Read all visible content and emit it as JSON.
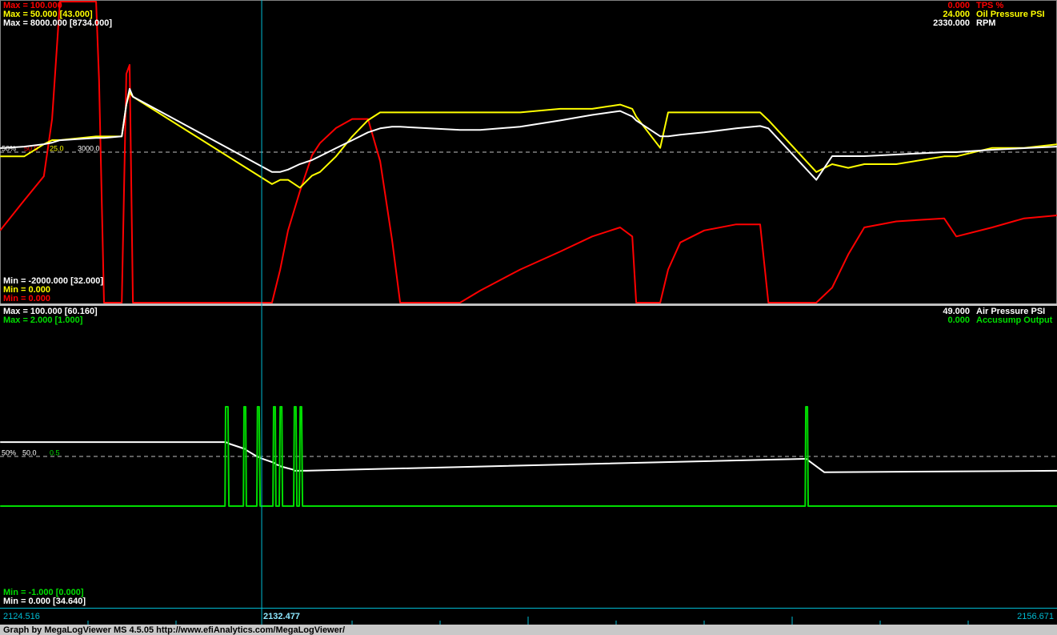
{
  "cursor": 2132.477,
  "status_text": "Graph by MegaLogViewer MS 4.5.05 http://www.efiAnalytics.com/MegaLogViewer/",
  "chart_data": [
    {
      "type": "line",
      "mid_text": "50%",
      "xlim": [
        2124.516,
        2156.671
      ],
      "x": [
        2124.52,
        2125.25,
        2125.85,
        2126.1,
        2126.34,
        2127.44,
        2127.53,
        2127.68,
        2128.22,
        2128.36,
        2128.46,
        2128.56,
        2132.79,
        2133.04,
        2133.28,
        2133.64,
        2134.01,
        2134.25,
        2134.74,
        2135.23,
        2135.71,
        2136.08,
        2136.44,
        2136.69,
        2138.51,
        2139.12,
        2140.34,
        2141.56,
        2142.53,
        2143.38,
        2143.75,
        2143.87,
        2144.6,
        2144.84,
        2145.21,
        2145.94,
        2146.91,
        2147.64,
        2147.89,
        2149.35,
        2149.83,
        2150.32,
        2150.81,
        2151.78,
        2153.24,
        2153.61,
        2154.7,
        2155.67,
        2156.67
      ],
      "series": [
        {
          "name": "TPS %",
          "color": "#ff0000",
          "ylim": [
            0,
            100
          ],
          "current": "0.000",
          "max_label": "Max = 100.000",
          "min_label": "Min = 0.000",
          "mid_label": "50.0",
          "values": [
            24,
            34,
            42,
            61,
            100,
            100,
            74,
            0,
            0,
            76,
            79,
            0,
            0,
            11,
            24,
            37,
            49,
            53,
            58,
            61,
            61,
            47,
            21,
            0,
            0,
            4,
            11,
            17,
            22,
            25,
            22,
            0,
            0,
            11,
            20,
            24,
            26,
            26,
            0,
            0,
            5,
            16,
            25,
            27,
            28,
            22,
            25,
            28,
            29
          ]
        },
        {
          "name": "Oil Pressure PSI",
          "color": "#ffff00",
          "ylim": [
            0,
            50
          ],
          "current": "24.000",
          "max_label": "Max = 50.000 [43.000]",
          "min_label": "Min = 0.000",
          "mid_label": "25.0",
          "values": [
            24.3,
            24.3,
            26.3,
            27,
            27,
            27.6,
            27.6,
            27.6,
            27.6,
            32.9,
            34.9,
            34.2,
            19.7,
            20.4,
            20.4,
            19.1,
            21.1,
            21.7,
            24.3,
            27.6,
            30.3,
            31.6,
            31.6,
            31.6,
            31.6,
            31.6,
            31.6,
            32.2,
            32.2,
            32.9,
            32.2,
            30.9,
            25.7,
            31.6,
            31.6,
            31.6,
            31.6,
            31.6,
            30.3,
            21.7,
            23,
            22.4,
            23,
            23,
            24.3,
            24.3,
            25.7,
            25.7,
            26.3
          ]
        },
        {
          "name": "RPM",
          "color": "#ffffff",
          "ylim": [
            -2000,
            8000
          ],
          "current": "2330.000",
          "max_label": "Max = 8000.000 [8734.000]",
          "min_label": "Min = -2000.000 [32.000]",
          "mid_label": "3000.0",
          "values": [
            3132,
            3184,
            3263,
            3316,
            3395,
            3474,
            3474,
            3474,
            3526,
            4579,
            5105,
            4842,
            2342,
            2342,
            2421,
            2605,
            2737,
            2868,
            3132,
            3395,
            3658,
            3789,
            3842,
            3842,
            3737,
            3737,
            3842,
            4053,
            4237,
            4368,
            4184,
            4053,
            3526,
            3526,
            3579,
            3658,
            3789,
            3868,
            3789,
            2079,
            2868,
            2868,
            2868,
            2921,
            3000,
            3000,
            3079,
            3132,
            3184
          ]
        }
      ]
    },
    {
      "type": "line",
      "mid_text": "50%",
      "xlim": [
        2124.516,
        2156.671
      ],
      "x": [
        2124.52,
        2131.36,
        2131.38,
        2131.45,
        2131.48,
        2131.92,
        2131.94,
        2131.99,
        2132.01,
        2132.33,
        2132.35,
        2132.4,
        2132.43,
        2132.82,
        2132.84,
        2132.89,
        2132.91,
        2133.01,
        2133.04,
        2133.09,
        2133.11,
        2133.45,
        2133.47,
        2133.52,
        2133.55,
        2133.62,
        2133.65,
        2133.69,
        2133.72,
        2149.01,
        2149.03,
        2149.08,
        2149.1,
        2149.59,
        2156.67
      ],
      "series": [
        {
          "name": "Air Pressure PSI",
          "color": "#ffffff",
          "ylim": [
            0,
            100
          ],
          "current": "49.000",
          "max_label": "Max = 100.000 [60.160]",
          "min_label": "Min = 0.000 [34.640]",
          "mid_label": "50.0",
          "values": [
            54.8,
            54.8,
            54.8,
            54.5,
            54.3,
            52.7,
            52.7,
            52.4,
            52.1,
            50.0,
            50.0,
            49.7,
            49.5,
            48.0,
            47.9,
            47.6,
            47.3,
            47.0,
            46.8,
            46.5,
            46.5,
            45.5,
            45.2,
            45.2,
            45.2,
            45.2,
            45.2,
            45.2,
            45.2,
            49.2,
            49.2,
            49.0,
            48.7,
            44.7,
            45.2
          ]
        },
        {
          "name": "Accusump Output",
          "color": "#00dd00",
          "ylim": [
            -1,
            2
          ],
          "current": "0.000",
          "max_label": "Max = 2.000 [1.000]",
          "min_label": "Min = -1.000 [0.000]",
          "mid_label": "0.5",
          "values": [
            0,
            0,
            1,
            1,
            0,
            0,
            1,
            1,
            0,
            0,
            1,
            1,
            0,
            0,
            1,
            1,
            0,
            0,
            1,
            1,
            0,
            0,
            1,
            1,
            0,
            0,
            1,
            1,
            0,
            0,
            1,
            1,
            0,
            0,
            0
          ]
        }
      ]
    }
  ]
}
